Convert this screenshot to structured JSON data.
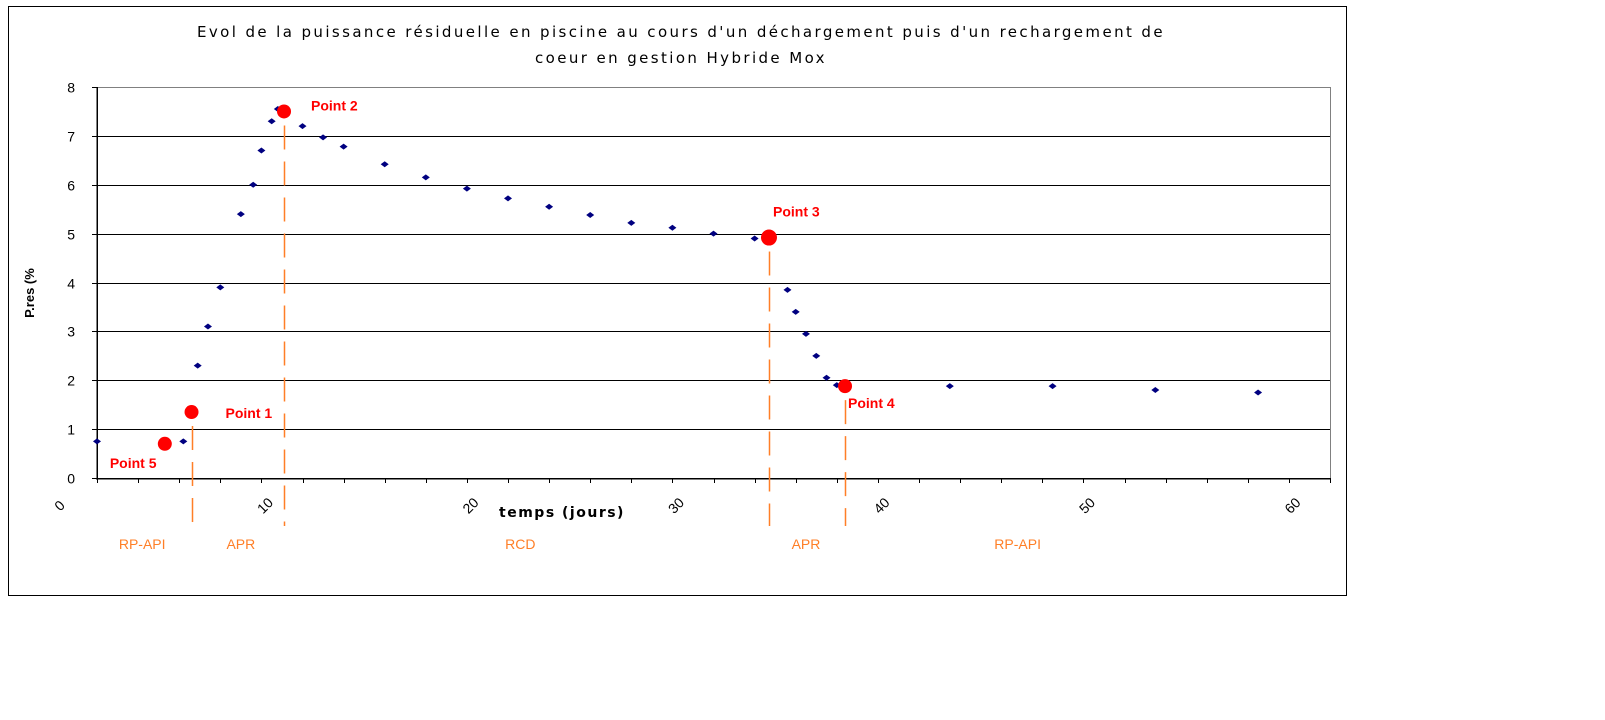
{
  "chart_data": {
    "type": "scatter",
    "title_line1": "Evol de la puissance résiduelle en piscine au cours d'un déchargement puis d'un rechargement de",
    "title_line2": "coeur en gestion Hybride Mox",
    "xlabel": "temps (jours)",
    "ylabel": "P.res (%",
    "xlim": [
      0,
      60
    ],
    "ylim": [
      0,
      8
    ],
    "x_ticks": [
      "0",
      "10",
      "20",
      "30",
      "40",
      "50",
      "60"
    ],
    "y_ticks": [
      "0",
      "1",
      "2",
      "3",
      "4",
      "5",
      "6",
      "7",
      "8"
    ],
    "grid": "horizontal",
    "series": [
      {
        "color": "#000080",
        "points": [
          [
            0.0,
            0.75
          ],
          [
            4.2,
            0.75
          ],
          [
            4.9,
            2.3
          ],
          [
            5.4,
            3.1
          ],
          [
            6.0,
            3.9
          ],
          [
            7.0,
            5.4
          ],
          [
            7.6,
            6.0
          ],
          [
            8.0,
            6.7
          ],
          [
            8.5,
            7.3
          ],
          [
            8.8,
            7.55
          ],
          [
            10.0,
            7.2
          ],
          [
            11.0,
            6.97
          ],
          [
            12.0,
            6.78
          ],
          [
            14.0,
            6.42
          ],
          [
            16.0,
            6.15
          ],
          [
            18.0,
            5.92
          ],
          [
            20.0,
            5.72
          ],
          [
            22.0,
            5.55
          ],
          [
            24.0,
            5.38
          ],
          [
            26.0,
            5.22
          ],
          [
            28.0,
            5.12
          ],
          [
            30.0,
            5.0
          ],
          [
            32.0,
            4.9
          ],
          [
            32.7,
            4.95
          ],
          [
            33.6,
            3.85
          ],
          [
            34.0,
            3.4
          ],
          [
            34.5,
            2.95
          ],
          [
            35.0,
            2.5
          ],
          [
            35.5,
            2.05
          ],
          [
            36.0,
            1.9
          ],
          [
            41.5,
            1.88
          ],
          [
            46.5,
            1.88
          ],
          [
            51.5,
            1.8
          ],
          [
            56.5,
            1.75
          ]
        ]
      }
    ],
    "highlighted_points": [
      {
        "name": "Point 1",
        "x": 4.6,
        "y": 1.35
      },
      {
        "name": "Point 2",
        "x": 9.1,
        "y": 7.5
      },
      {
        "name": "Point 3",
        "x": 32.7,
        "y": 4.92
      },
      {
        "name": "Point 4",
        "x": 36.4,
        "y": 1.88
      },
      {
        "name": "Point 5",
        "x": 3.3,
        "y": 0.7
      }
    ],
    "phase_boundaries_x": [
      4.6,
      9.1,
      32.7,
      36.4
    ],
    "phases": [
      {
        "label": "RP-API",
        "x_center": 2.2
      },
      {
        "label": "APR",
        "x_center": 7.0
      },
      {
        "label": "RCD",
        "x_center": 20.6
      },
      {
        "label": "APR",
        "x_center": 34.5
      },
      {
        "label": "RP-API",
        "x_center": 44.8
      }
    ],
    "colors": {
      "marker": "#000080",
      "highlight": "#ff0000",
      "phase": "#ff7f27",
      "grid": "#000000"
    }
  }
}
